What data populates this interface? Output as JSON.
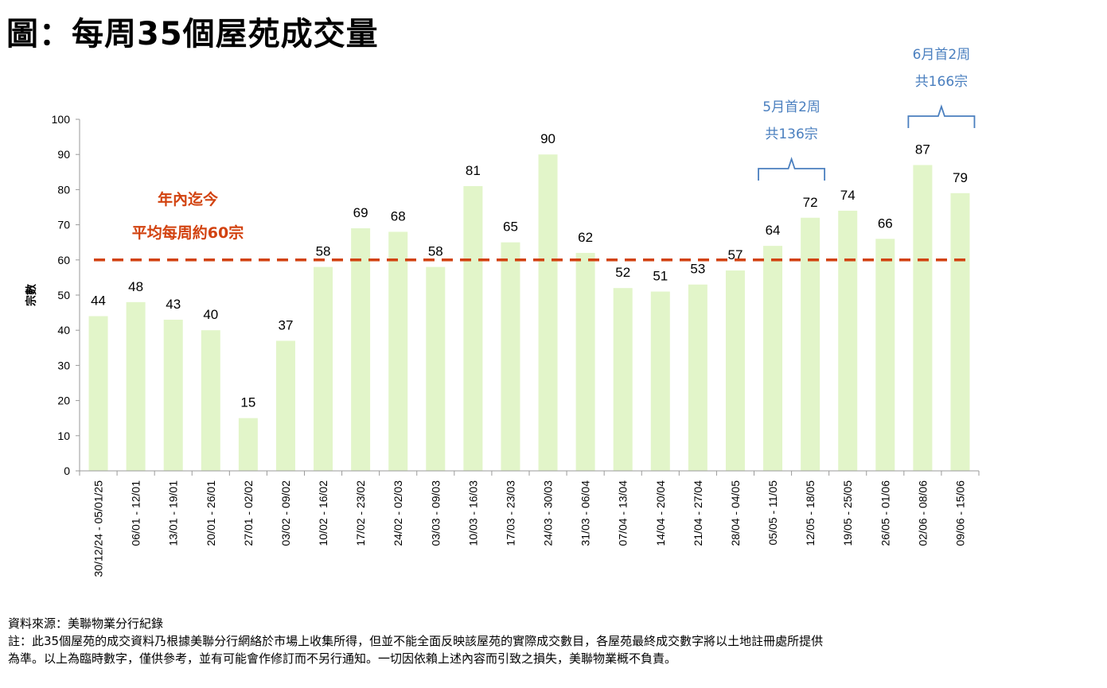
{
  "title": "圖：每周35個屋苑成交量",
  "footer": {
    "source": "資料來源：美聯物業分行紀錄",
    "note_line1": "註：此35個屋苑的成交資料乃根據美聯分行網絡於市場上收集所得，但並不能全面反映該屋苑的實際成交數目，各屋苑最終成交數字將以土地註冊處所提供",
    "note_line2": "為準。以上為臨時數字，僅供參考，並有可能會作修訂而不另行通知。一切因依賴上述內容而引致之損失，美聯物業概不負責。"
  },
  "chart_data": {
    "type": "bar",
    "ylabel": "宗數",
    "xlabel": "",
    "ylim": [
      0,
      100
    ],
    "yticks": [
      0,
      10,
      20,
      30,
      40,
      50,
      60,
      70,
      80,
      90,
      100
    ],
    "grid": false,
    "categories": [
      "30/12/24 - 05/01/25",
      "06/01 - 12/01",
      "13/01 - 19/01",
      "20/01 - 26/01",
      "27/01 - 02/02",
      "03/02 - 09/02",
      "10/02 - 16/02",
      "17/02 - 23/02",
      "24/02 - 02/03",
      "03/03 - 09/03",
      "10/03 - 16/03",
      "17/03 - 23/03",
      "24/03 - 30/03",
      "31/03 - 06/04",
      "07/04 - 13/04",
      "14/04 - 20/04",
      "21/04 - 27/04",
      "28/04 - 04/05",
      "05/05 - 11/05",
      "12/05 - 18/05",
      "19/05 - 25/05",
      "26/05 - 01/06",
      "02/06 - 08/06",
      "09/06 - 15/06"
    ],
    "values": [
      44,
      48,
      43,
      40,
      15,
      37,
      58,
      69,
      68,
      58,
      81,
      65,
      90,
      62,
      52,
      51,
      53,
      57,
      64,
      72,
      74,
      66,
      87,
      79
    ],
    "bar_color": "#e2f5c9",
    "reference_line": {
      "value": 60,
      "color": "#d2420f",
      "label_line1": "年內迄今",
      "label_line2": "平均每周約60宗"
    },
    "annotations": [
      {
        "line1": "5月首2周",
        "line2": "共136宗",
        "from": 18,
        "to": 19,
        "color": "#4a7fbf"
      },
      {
        "line1": "6月首2周",
        "line2": "共166宗",
        "from": 22,
        "to": 23,
        "color": "#4a7fbf"
      }
    ]
  }
}
